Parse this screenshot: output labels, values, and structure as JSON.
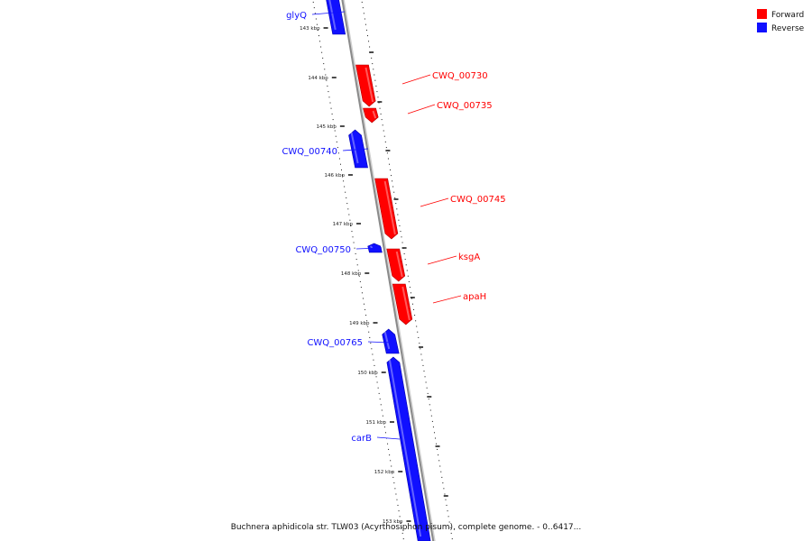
{
  "colors": {
    "forward": "#ff0000",
    "reverse": "#1010ff",
    "backbone": "#8a8a8a",
    "ticks": "#111111"
  },
  "legend": [
    {
      "label": "Forward",
      "strand": "forward",
      "color": "#ff0000"
    },
    {
      "label": "Reverse",
      "strand": "reverse",
      "color": "#1010ff"
    }
  ],
  "caption": "Buchnera aphidicola str. TLW03 (Acyrthosiphon pisum), complete genome. - 0..6417...",
  "axis": {
    "unit": "kbp",
    "labels": [
      "143 kbp",
      "144 kbp",
      "145 kbp",
      "146 kbp",
      "147 kbp",
      "148 kbp",
      "149 kbp",
      "150 kbp",
      "151 kbp",
      "152 kbp",
      "153 kbp"
    ]
  },
  "genes": [
    {
      "name": "glyQ",
      "strand": "reverse"
    },
    {
      "name": "CWQ_00730",
      "strand": "forward"
    },
    {
      "name": "CWQ_00735",
      "strand": "forward"
    },
    {
      "name": "CWQ_00740",
      "strand": "reverse"
    },
    {
      "name": "CWQ_00745",
      "strand": "forward"
    },
    {
      "name": "CWQ_00750",
      "strand": "reverse"
    },
    {
      "name": "ksgA",
      "strand": "forward"
    },
    {
      "name": "apaH",
      "strand": "forward"
    },
    {
      "name": "CWQ_00765",
      "strand": "reverse"
    },
    {
      "name": "carB",
      "strand": "reverse"
    }
  ]
}
